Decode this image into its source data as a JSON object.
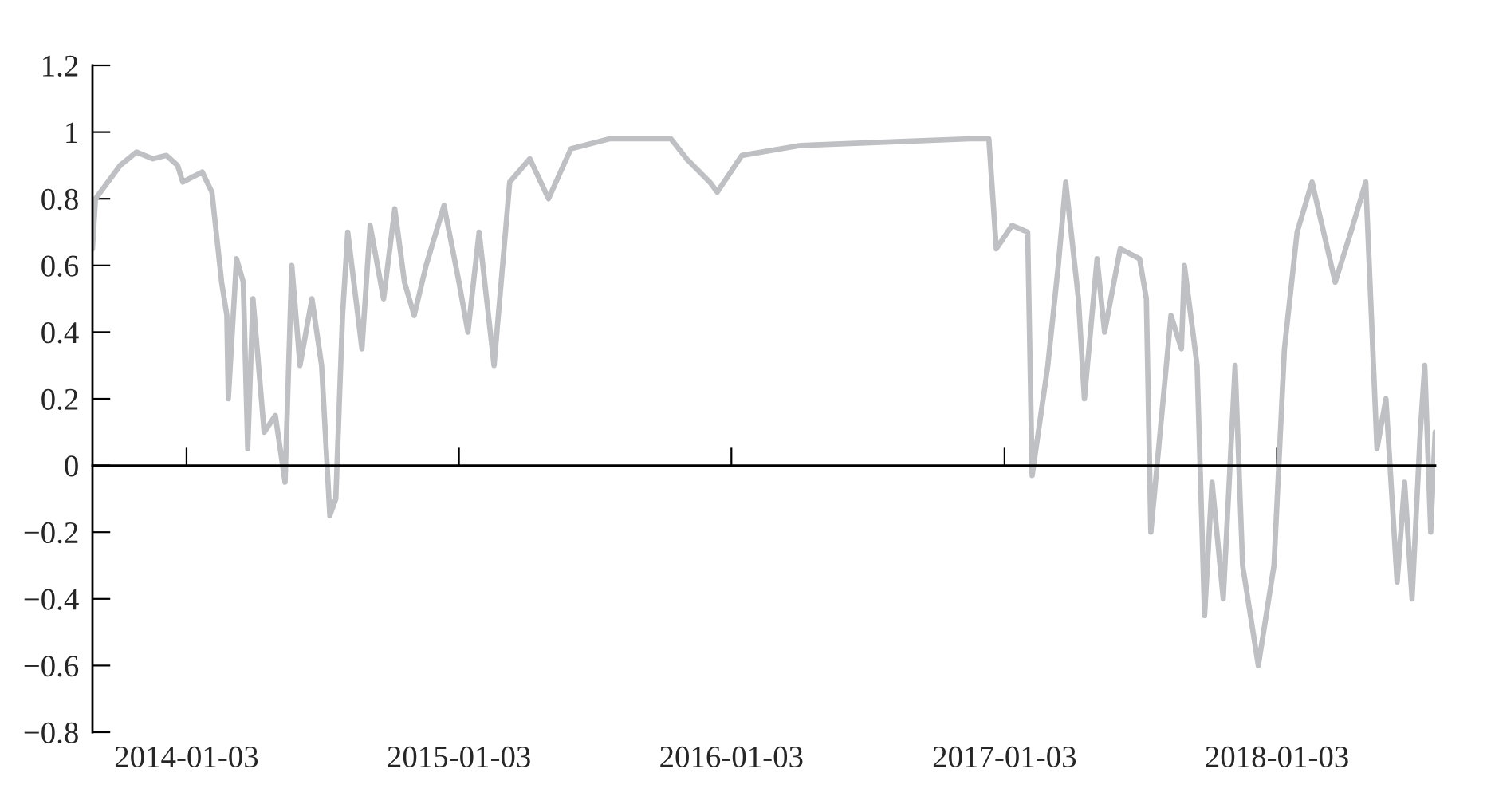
{
  "chart_data": {
    "type": "line",
    "x": [
      "2013-08-30",
      "2013-09-03",
      "2013-10-06",
      "2013-10-28",
      "2013-11-19",
      "2013-12-07",
      "2013-12-22",
      "2013-12-29",
      "2014-01-24",
      "2014-02-06",
      "2014-02-19",
      "2014-02-26",
      "2014-02-28",
      "2014-03-11",
      "2014-03-20",
      "2014-03-26",
      "2014-04-02",
      "2014-04-17",
      "2014-05-02",
      "2014-05-15",
      "2014-05-24",
      "2014-06-04",
      "2014-06-20",
      "2014-07-03",
      "2014-07-14",
      "2014-07-22",
      "2014-07-31",
      "2014-08-07",
      "2014-08-26",
      "2014-09-06",
      "2014-09-24",
      "2014-10-09",
      "2014-10-22",
      "2014-11-04",
      "2014-11-20",
      "2014-12-14",
      "2015-01-03",
      "2015-01-15",
      "2015-01-30",
      "2015-02-19",
      "2015-03-12",
      "2015-04-08",
      "2015-05-03",
      "2015-06-02",
      "2015-07-24",
      "2015-10-14",
      "2015-11-04",
      "2015-12-05",
      "2015-12-15",
      "2016-01-17",
      "2016-04-05",
      "2016-07-28",
      "2016-11-18",
      "2016-12-13",
      "2016-12-23",
      "2017-01-13",
      "2017-02-03",
      "2017-02-09",
      "2017-03-02",
      "2017-03-16",
      "2017-03-26",
      "2017-04-12",
      "2017-04-20",
      "2017-05-07",
      "2017-05-17",
      "2017-06-07",
      "2017-07-03",
      "2017-07-12",
      "2017-07-18",
      "2017-08-14",
      "2017-08-28",
      "2017-09-01",
      "2017-09-18",
      "2017-09-28",
      "2017-10-08",
      "2017-10-23",
      "2017-11-08",
      "2017-11-18",
      "2017-12-09",
      "2017-12-30",
      "2018-01-13",
      "2018-01-30",
      "2018-02-19",
      "2018-03-22",
      "2018-04-12",
      "2018-05-02",
      "2018-05-17",
      "2018-05-29",
      "2018-06-13",
      "2018-06-23",
      "2018-07-03",
      "2018-07-14",
      "2018-07-20",
      "2018-07-28",
      "2018-08-03"
    ],
    "series": [
      {
        "color": "#bfc0c3",
        "values": [
          0.65,
          0.8,
          0.9,
          0.94,
          0.92,
          0.93,
          0.9,
          0.85,
          0.88,
          0.82,
          0.55,
          0.45,
          0.2,
          0.62,
          0.55,
          0.05,
          0.5,
          0.1,
          0.15,
          -0.05,
          0.6,
          0.3,
          0.5,
          0.3,
          -0.15,
          -0.1,
          0.45,
          0.7,
          0.35,
          0.72,
          0.5,
          0.77,
          0.55,
          0.45,
          0.6,
          0.78,
          0.55,
          0.4,
          0.7,
          0.3,
          0.85,
          0.92,
          0.8,
          0.95,
          0.98,
          0.98,
          0.92,
          0.85,
          0.82,
          0.93,
          0.96,
          0.97,
          0.98,
          0.98,
          0.65,
          0.72,
          0.7,
          -0.03,
          0.3,
          0.6,
          0.85,
          0.5,
          0.2,
          0.62,
          0.4,
          0.65,
          0.62,
          0.5,
          -0.2,
          0.45,
          0.35,
          0.6,
          0.3,
          -0.45,
          -0.05,
          -0.4,
          0.3,
          -0.3,
          -0.6,
          -0.3,
          0.35,
          0.7,
          0.85,
          0.55,
          0.7,
          0.85,
          0.05,
          0.2,
          -0.35,
          -0.05,
          -0.4,
          0.1,
          0.3,
          -0.2,
          0.1
        ]
      }
    ],
    "xlim": [
      "2013-08-30",
      "2018-08-03"
    ],
    "xticks": [
      {
        "value": "2014-01-03",
        "label": "2014-01-03"
      },
      {
        "value": "2015-01-03",
        "label": "2015-01-03"
      },
      {
        "value": "2016-01-03",
        "label": "2016-01-03"
      },
      {
        "value": "2017-01-03",
        "label": "2017-01-03"
      },
      {
        "value": "2018-01-03",
        "label": "2018-01-03"
      }
    ],
    "ylim": [
      -0.8,
      1.2
    ],
    "yticks": [
      {
        "value": -0.8,
        "label": "−0.8"
      },
      {
        "value": -0.6,
        "label": "−0.6"
      },
      {
        "value": -0.4,
        "label": "−0.4"
      },
      {
        "value": -0.2,
        "label": "−0.2"
      },
      0,
      0.2,
      0.4,
      0.6,
      0.8,
      1,
      1.2
    ],
    "line_style": "solid"
  }
}
